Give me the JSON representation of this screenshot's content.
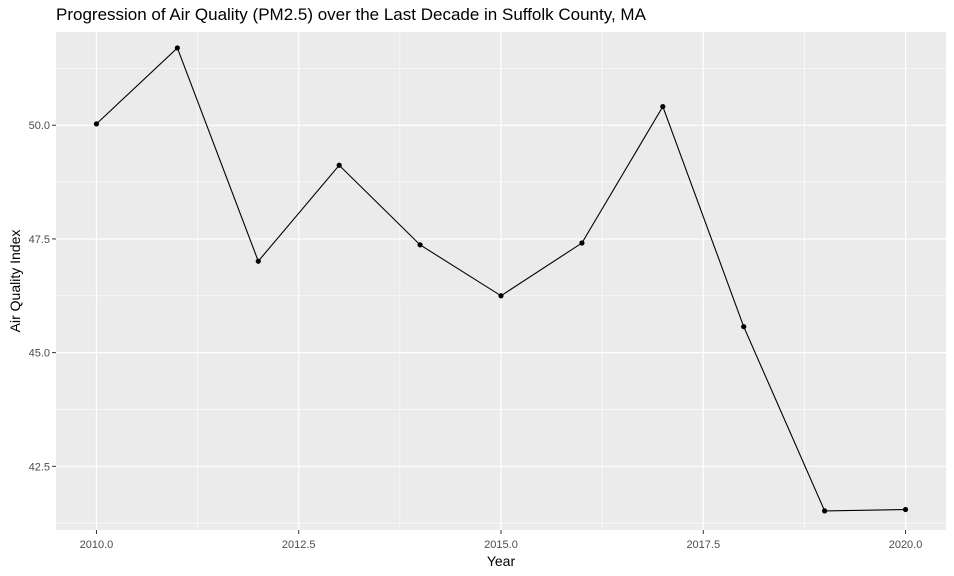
{
  "chart_data": {
    "type": "line",
    "title": "Progression of Air Quality (PM2.5) over the Last Decade in Suffolk County, MA",
    "xlabel": "Year",
    "ylabel": "Air Quality Index",
    "xlim": [
      2009.5,
      2020.5
    ],
    "ylim": [
      41.1,
      52.05
    ],
    "x_ticks": [
      2010.0,
      2012.5,
      2015.0,
      2017.5,
      2020.0
    ],
    "x_tick_labels": [
      "2010.0",
      "2012.5",
      "2015.0",
      "2017.5",
      "2020.0"
    ],
    "y_ticks": [
      42.5,
      45.0,
      47.5,
      50.0
    ],
    "y_tick_labels": [
      "42.5",
      "45.0",
      "47.5",
      "50.0"
    ],
    "grid": true,
    "series": [
      {
        "x": [
          2010,
          2011,
          2012,
          2013,
          2014,
          2015,
          2016,
          2017,
          2018,
          2019,
          2020
        ],
        "y": [
          50.03,
          51.7,
          47.01,
          49.12,
          47.37,
          46.25,
          47.41,
          50.41,
          45.57,
          41.52,
          41.55
        ]
      }
    ],
    "colors": {
      "panel_background": "#ebebeb",
      "grid": "#ffffff",
      "line": "#000000",
      "points": "#000000",
      "tick_text": "#4d4d4d",
      "tick_marks": "#333333"
    }
  }
}
